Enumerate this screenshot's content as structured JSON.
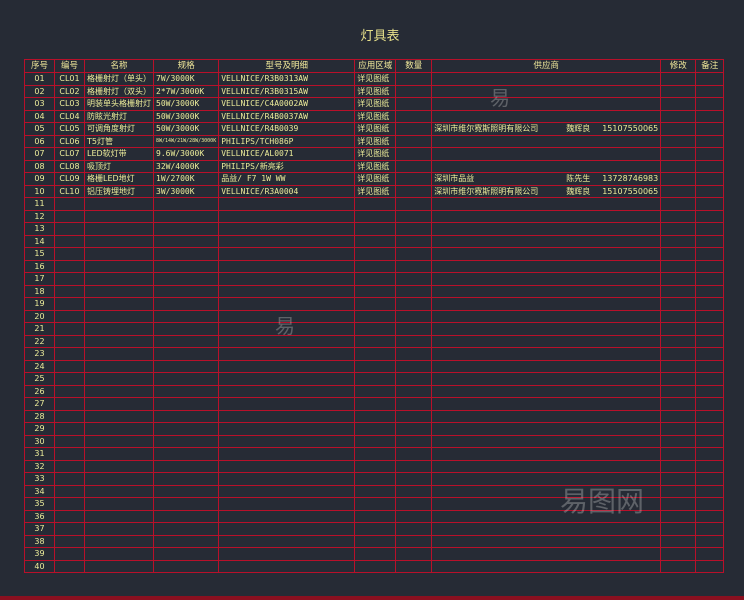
{
  "title": "灯具表",
  "headers": [
    "序号",
    "编号",
    "名称",
    "规格",
    "型号及明细",
    "应用区域",
    "数量",
    "供应商",
    "修改",
    "备注"
  ],
  "rows": [
    {
      "no": "01",
      "code": "CL01",
      "name": "格栅射灯（单头）",
      "spec": "7W/3000K",
      "model": "VELLNICE/R3B0313AW",
      "area": "详见图纸"
    },
    {
      "no": "02",
      "code": "CL02",
      "name": "格栅射灯（双头）",
      "spec": "2*7W/3000K",
      "model": "VELLNICE/R3B0315AW",
      "area": "详见图纸"
    },
    {
      "no": "03",
      "code": "CL03",
      "name": "明装单头格栅射灯",
      "spec": "50W/3000K",
      "model": "VELLNICE/C4A0002AW",
      "area": "详见图纸"
    },
    {
      "no": "04",
      "code": "CL04",
      "name": "防眩光射灯",
      "spec": "50W/3000K",
      "model": "VELLNICE/R4B0037AW",
      "area": "详见图纸"
    },
    {
      "no": "05",
      "code": "CL05",
      "name": "可调角度射灯",
      "spec": "50W/3000K",
      "model": "VELLNICE/R4B0039",
      "area": "详见图纸",
      "supplier": "深圳市维尔霓斯照明有限公司",
      "contact": "魏辉良",
      "phone": "15107550065"
    },
    {
      "no": "06",
      "code": "CL06",
      "name": "T5灯管",
      "spec": "8W/14W/21W/28W/3000K",
      "model": "PHILIPS/TCH086P",
      "area": "详见图纸"
    },
    {
      "no": "07",
      "code": "CL07",
      "name": "LED软灯带",
      "spec": "9.6W/3000K",
      "model": "VELLNICE/AL0071",
      "area": "详见图纸"
    },
    {
      "no": "08",
      "code": "CL08",
      "name": "吸顶灯",
      "spec": "32W/4000K",
      "model": "PHILIPS/新亮彩",
      "area": "详见图纸"
    },
    {
      "no": "09",
      "code": "CL09",
      "name": "格栅LED地灯",
      "spec": "1W/2700K",
      "model": "品益/ F7 1W WW",
      "area": "详见图纸",
      "supplier": "深圳市品益",
      "contact": "陈先生",
      "phone": "13728746983"
    },
    {
      "no": "10",
      "code": "CL10",
      "name": "铝压铸埋地灯",
      "spec": "3W/3000K",
      "model": "VELLNICE/R3A0004",
      "area": "详见图纸",
      "supplier": "深圳市维尔霓斯照明有限公司",
      "contact": "魏辉良",
      "phone": "15107550065"
    }
  ],
  "empty_row_numbers": [
    "11",
    "12",
    "13",
    "14",
    "15",
    "16",
    "17",
    "18",
    "19",
    "20",
    "21",
    "22",
    "23",
    "24",
    "25",
    "26",
    "27",
    "28",
    "29",
    "30",
    "31",
    "32",
    "33",
    "34",
    "35",
    "36",
    "37",
    "38",
    "39",
    "40"
  ],
  "watermark": "易图网",
  "colors": {
    "background": "#262b35",
    "grid": "#b8102a",
    "border": "#c08a4c",
    "text": "#ecec9a"
  }
}
